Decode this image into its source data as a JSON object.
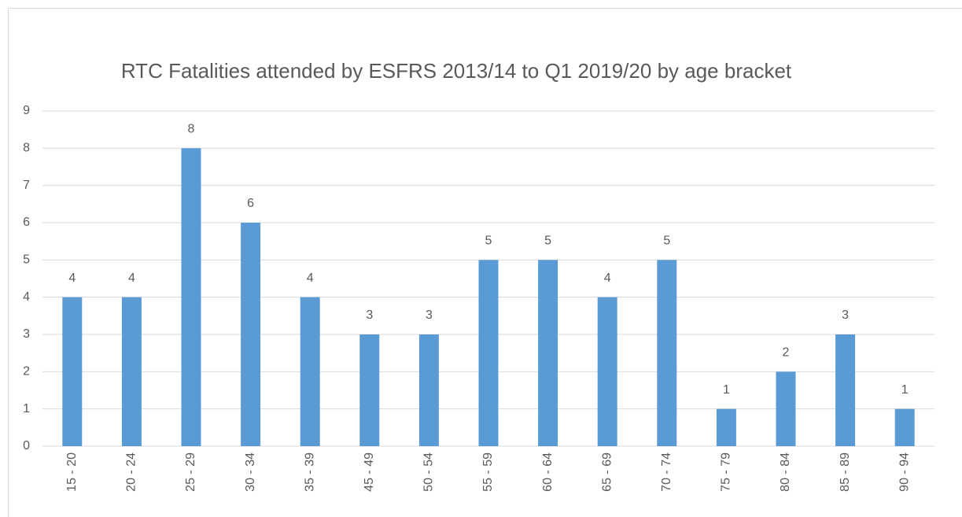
{
  "chart_data": {
    "type": "bar",
    "title": "RTC Fatalities attended by ESFRS 2013/14 to Q1 2019/20 by age bracket",
    "categories": [
      "15 - 20",
      "20 - 24",
      "25 - 29",
      "30 - 34",
      "35 - 39",
      "45 - 49",
      "50 - 54",
      "55 - 59",
      "60 - 64",
      "65 - 69",
      "70 - 74",
      "75 - 79",
      "80 - 84",
      "85 - 89",
      "90 - 94"
    ],
    "values": [
      4,
      4,
      8,
      6,
      4,
      3,
      3,
      5,
      5,
      4,
      5,
      1,
      2,
      3,
      1
    ],
    "color": "#5b9bd5",
    "ylim": [
      0,
      9
    ],
    "yticks": [
      0,
      1,
      2,
      3,
      4,
      5,
      6,
      7,
      8,
      9
    ],
    "grid": true
  }
}
